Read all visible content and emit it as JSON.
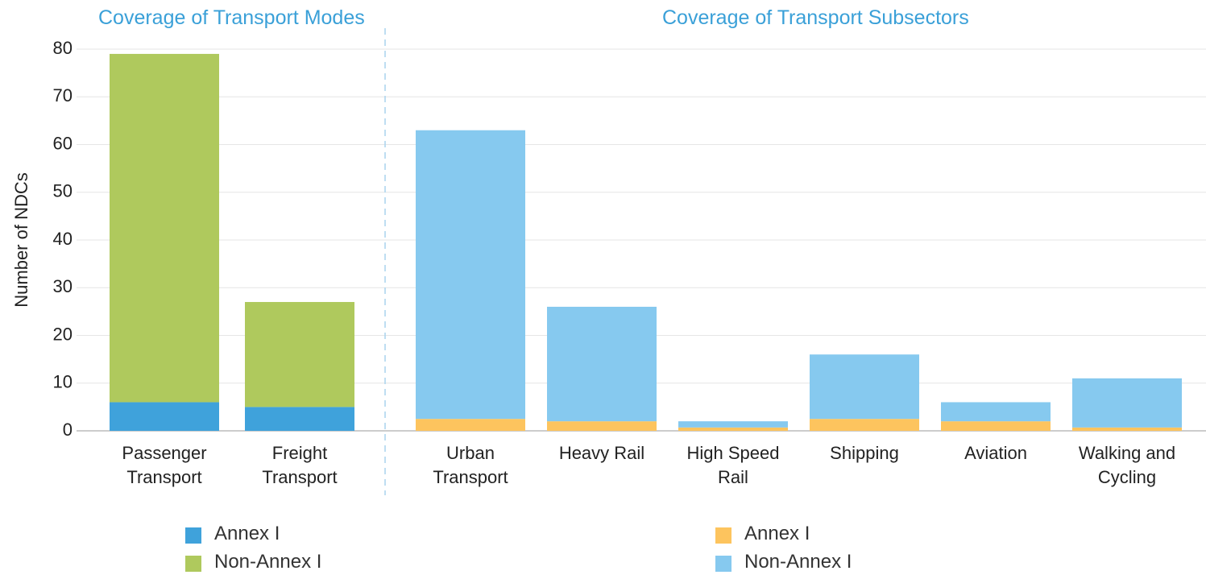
{
  "chart_data": [
    {
      "type": "bar",
      "stacked": true,
      "title": "Coverage of Transport Modes",
      "ylabel": "Number of NDCs",
      "categories": [
        "Passenger Transport",
        "Freight Transport"
      ],
      "series": [
        {
          "name": "Annex I",
          "color": "#3fa2db",
          "values": [
            6,
            5
          ]
        },
        {
          "name": "Non-Annex I",
          "color": "#afc95d",
          "values": [
            73,
            22
          ]
        }
      ],
      "ylim": [
        0,
        80
      ],
      "yticks": [
        0,
        10,
        20,
        30,
        40,
        50,
        60,
        70,
        80
      ],
      "grid": true
    },
    {
      "type": "bar",
      "stacked": true,
      "title": "Coverage of Transport Subsectors",
      "categories": [
        "Urban Transport",
        "Heavy Rail",
        "High Speed Rail",
        "Shipping",
        "Aviation",
        "Walking and Cycling"
      ],
      "series": [
        {
          "name": "Annex I",
          "color": "#fdc45e",
          "values": [
            2.5,
            2,
            0.7,
            2.5,
            2,
            0.7
          ]
        },
        {
          "name": "Non-Annex I",
          "color": "#86c9ef",
          "values": [
            60.5,
            24,
            1.3,
            13.5,
            4,
            10.3
          ]
        }
      ]
    }
  ]
}
